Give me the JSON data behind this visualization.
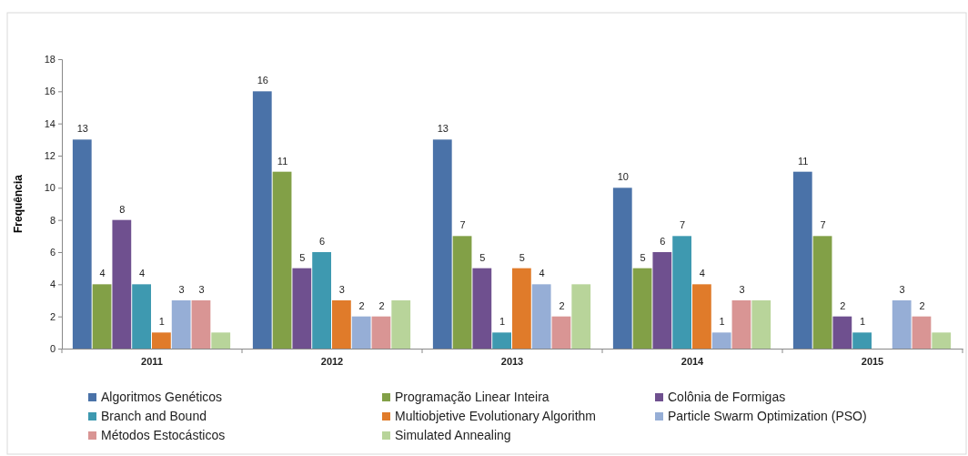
{
  "chart_data": {
    "type": "bar",
    "ylabel": "Frequência",
    "categories": [
      "2011",
      "2012",
      "2013",
      "2014",
      "2015"
    ],
    "ylim": [
      0,
      18
    ],
    "yticks": [
      0,
      2,
      4,
      6,
      8,
      10,
      12,
      14,
      16,
      18
    ],
    "grid": false,
    "legend": "bottom",
    "series": [
      {
        "name": "Algoritmos Genéticos",
        "color": "#4a72a8",
        "values": [
          13,
          16,
          13,
          10,
          11
        ],
        "value_labels": [
          "13",
          "16",
          "13",
          "10",
          "11"
        ]
      },
      {
        "name": "Programação Linear Inteira",
        "color": "#82a047",
        "values": [
          4,
          11,
          7,
          5,
          7
        ],
        "value_labels": [
          "4",
          "11",
          "7",
          "5",
          "7"
        ]
      },
      {
        "name": "Colônia de Formigas",
        "color": "#6f508f",
        "values": [
          8,
          5,
          5,
          6,
          2
        ],
        "value_labels": [
          "8",
          "5",
          "5",
          "6",
          "2"
        ]
      },
      {
        "name": "Branch and Bound",
        "color": "#3e99b0",
        "values": [
          4,
          6,
          1,
          7,
          1
        ],
        "value_labels": [
          "4",
          "6",
          "1",
          "7",
          "1"
        ]
      },
      {
        "name": "Multiobjetive Evolutionary Algorithm",
        "color": "#e07b2a",
        "values": [
          1,
          3,
          5,
          4,
          null
        ],
        "value_labels": [
          "1",
          "3",
          "5",
          "4",
          null
        ]
      },
      {
        "name": "Particle Swarm Optimization (PSO)",
        "color": "#96aed6",
        "values": [
          3,
          2,
          4,
          1,
          3
        ],
        "value_labels": [
          "3",
          "2",
          "4",
          "1",
          "3"
        ]
      },
      {
        "name": "Métodos Estocásticos",
        "color": "#d99594",
        "values": [
          3,
          2,
          2,
          3,
          2
        ],
        "value_labels": [
          "3",
          "2",
          "2",
          "3",
          "2"
        ]
      },
      {
        "name": "Simulated Annealing",
        "color": "#b8d49a",
        "values": [
          1,
          3,
          4,
          3,
          1
        ],
        "value_labels": [
          null,
          null,
          null,
          null,
          null
        ]
      }
    ]
  }
}
